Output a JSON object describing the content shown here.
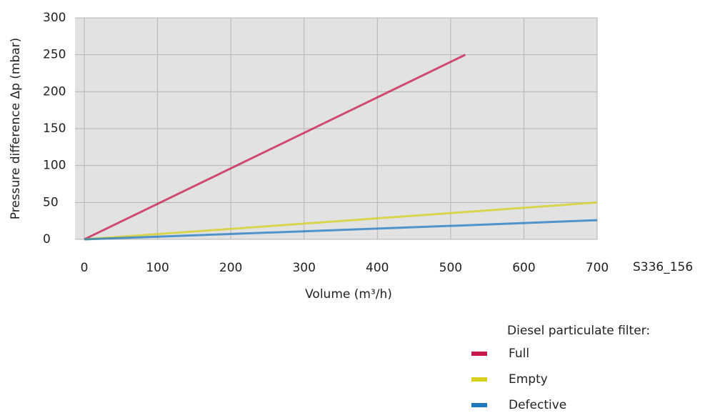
{
  "chart_data": {
    "type": "line",
    "x_label": "Volume (m³/h)",
    "y_label": "Pressure difference Δp (mbar)",
    "figure_id": "S336_156",
    "legend_title": "Diesel particulate filter:",
    "x": [
      0,
      520,
      700
    ],
    "series": [
      {
        "name": "Full",
        "color": "#c8174a",
        "values": [
          0,
          250,
          null
        ]
      },
      {
        "name": "Empty",
        "color": "#d6cf1e",
        "values": [
          0,
          37,
          50
        ]
      },
      {
        "name": "Defective",
        "color": "#1f78c1",
        "values": [
          0,
          19,
          26
        ]
      }
    ],
    "xlim": [
      0,
      700
    ],
    "xticks": [
      0,
      100,
      200,
      300,
      400,
      500,
      600,
      700
    ],
    "ylim": [
      0,
      300
    ],
    "yticks": [
      0,
      50,
      100,
      150,
      200,
      250,
      300
    ],
    "grid": true
  }
}
